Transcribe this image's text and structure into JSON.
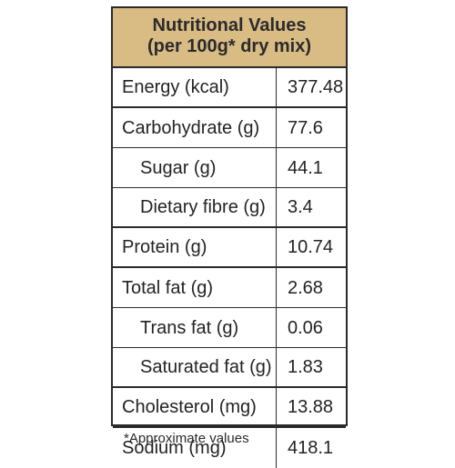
{
  "title": {
    "line1": "Nutritional Values",
    "line2": "(per 100g*  dry mix)"
  },
  "rows": [
    {
      "label": "Energy (kcal)",
      "value": "377.48",
      "indent": false
    },
    {
      "label": "Carbohydrate (g)",
      "value": "77.6",
      "indent": false
    },
    {
      "label": "Sugar (g)",
      "value": "44.1",
      "indent": true
    },
    {
      "label": "Dietary fibre (g)",
      "value": "3.4",
      "indent": true
    },
    {
      "label": "Protein (g)",
      "value": "10.74",
      "indent": false
    },
    {
      "label": "Total fat (g)",
      "value": "2.68",
      "indent": false
    },
    {
      "label": "Trans fat (g)",
      "value": "0.06",
      "indent": true
    },
    {
      "label": "Saturated fat (g)",
      "value": "1.83",
      "indent": true
    },
    {
      "label": "Cholesterol (mg)",
      "value": "13.88",
      "indent": false
    },
    {
      "label": "Sodium (mg)",
      "value": "418.1",
      "indent": false
    }
  ],
  "footnote": "*Approximate values",
  "colors": {
    "header_background": "#d9bb84",
    "border": "#2a2a2a",
    "text": "#232323"
  }
}
